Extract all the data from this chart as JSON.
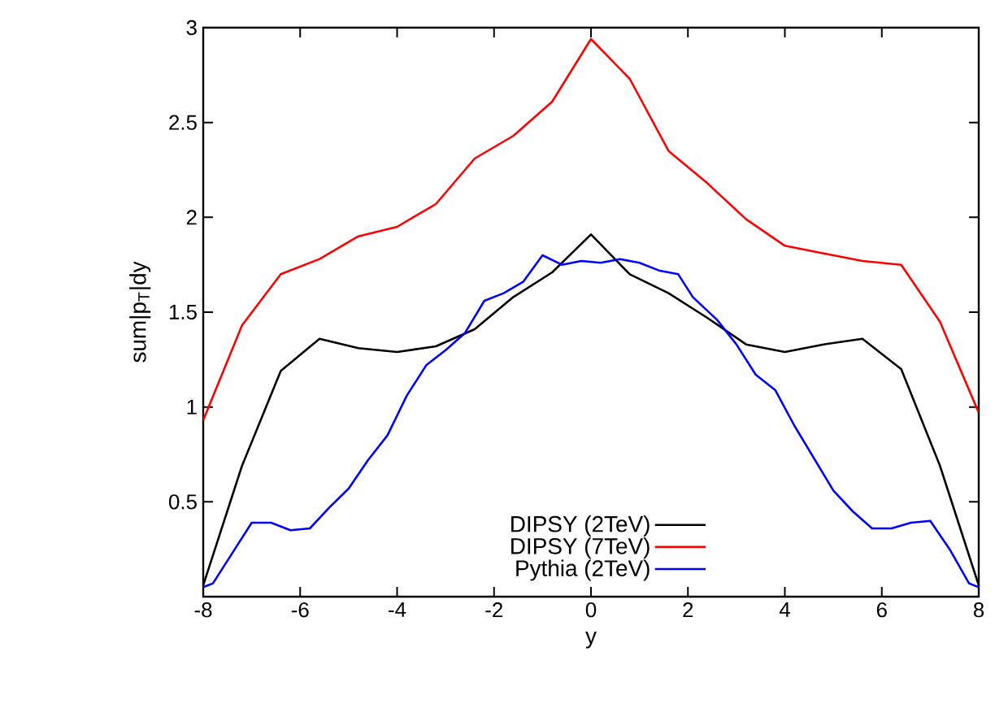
{
  "chart_data": {
    "type": "line",
    "xlabel": "y",
    "ylabel": "sum|p$_{T}$|dy",
    "xlim": [
      -8,
      8
    ],
    "ylim": [
      0,
      3
    ],
    "xticks": [
      -8,
      -6,
      -4,
      -2,
      0,
      2,
      4,
      6,
      8
    ],
    "yticks": [
      0.5,
      1,
      1.5,
      2,
      2.5,
      3
    ],
    "legend": "bottom",
    "grid": false,
    "line_style": "solid",
    "marker": "none",
    "series": [
      {
        "name": "DIPSY (2TeV)",
        "color": "#000000",
        "x": [
          -8,
          -7.2,
          -6.4,
          -5.6,
          -4.8,
          -4,
          -3.2,
          -2.4,
          -1.6,
          -0.8,
          0,
          0.8,
          1.6,
          2.4,
          3.2,
          4,
          4.8,
          5.6,
          6.4,
          7.2,
          8
        ],
        "values": [
          0.06,
          0.69,
          1.19,
          1.36,
          1.31,
          1.29,
          1.32,
          1.41,
          1.58,
          1.71,
          1.91,
          1.7,
          1.6,
          1.47,
          1.33,
          1.29,
          1.33,
          1.36,
          1.2,
          0.69,
          0.06
        ]
      },
      {
        "name": "DIPSY (7TeV)",
        "color": "#ff0000",
        "x": [
          -8,
          -7.2,
          -6.4,
          -5.6,
          -4.8,
          -4,
          -3.2,
          -2.4,
          -1.6,
          -0.8,
          0,
          0.8,
          1.6,
          2.4,
          3.2,
          4,
          4.8,
          5.6,
          6.4,
          7.2,
          8
        ],
        "values": [
          0.93,
          1.43,
          1.7,
          1.78,
          1.9,
          1.95,
          2.07,
          2.31,
          2.43,
          2.61,
          2.94,
          2.73,
          2.35,
          2.18,
          1.99,
          1.85,
          1.81,
          1.77,
          1.75,
          1.45,
          0.97
        ]
      },
      {
        "name": "Pythia (2TeV)",
        "color": "#0000ff",
        "x": [
          -8,
          -7.8,
          -7.4,
          -7,
          -6.6,
          -6.2,
          -5.8,
          -5.4,
          -5,
          -4.6,
          -4.2,
          -3.8,
          -3.4,
          -3,
          -2.6,
          -2.2,
          -1.8,
          -1.4,
          -1,
          -0.6,
          -0.2,
          0.2,
          0.6,
          1,
          1.4,
          1.8,
          2.1,
          2.6,
          3,
          3.4,
          3.8,
          4.2,
          4.6,
          5,
          5.4,
          5.8,
          6.2,
          6.6,
          7,
          7.4,
          7.8,
          8
        ],
        "values": [
          0.05,
          0.07,
          0.23,
          0.39,
          0.39,
          0.35,
          0.36,
          0.47,
          0.57,
          0.72,
          0.85,
          1.06,
          1.22,
          1.3,
          1.39,
          1.56,
          1.6,
          1.66,
          1.8,
          1.75,
          1.77,
          1.76,
          1.78,
          1.76,
          1.72,
          1.7,
          1.58,
          1.46,
          1.33,
          1.17,
          1.09,
          0.9,
          0.73,
          0.56,
          0.45,
          0.36,
          0.36,
          0.39,
          0.4,
          0.25,
          0.07,
          0.05
        ]
      }
    ]
  }
}
